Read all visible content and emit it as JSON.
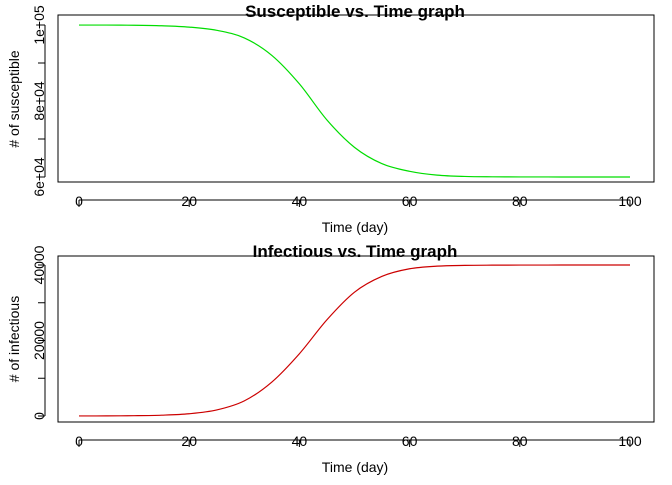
{
  "chart_data": [
    {
      "type": "line",
      "title": "Susceptible vs. Time graph",
      "xlabel": "Time (day)",
      "ylabel": "# of susceptible",
      "xlim": [
        0,
        100
      ],
      "ylim": [
        60000,
        100000
      ],
      "xticks": [
        0,
        20,
        40,
        60,
        80,
        100
      ],
      "xtick_labels": [
        "0",
        "20",
        "40",
        "60",
        "80",
        "100"
      ],
      "yticks": [
        60000,
        70000,
        80000,
        90000,
        100000
      ],
      "ytick_labels": [
        "6e+04",
        "",
        "8e+04",
        "",
        "1e+05"
      ],
      "grid": false,
      "series": [
        {
          "color": "#00dd00",
          "x": [
            0,
            5,
            10,
            15,
            20,
            25,
            30,
            35,
            40,
            45,
            50,
            55,
            60,
            65,
            70,
            75,
            80,
            85,
            90,
            95,
            100
          ],
          "values": [
            99990,
            99980,
            99940,
            99800,
            99450,
            98600,
            96600,
            92000,
            84500,
            75000,
            67800,
            63500,
            61500,
            60500,
            60150,
            60050,
            60020,
            60010,
            60000,
            60000,
            60000
          ]
        }
      ]
    },
    {
      "type": "line",
      "title": "Infectious vs. Time graph",
      "xlabel": "Time (day)",
      "ylabel": "# of infectious",
      "xlim": [
        0,
        100
      ],
      "ylim": [
        0,
        40000
      ],
      "xticks": [
        0,
        20,
        40,
        60,
        80,
        100
      ],
      "xtick_labels": [
        "0",
        "20",
        "40",
        "60",
        "80",
        "100"
      ],
      "yticks": [
        0,
        10000,
        20000,
        30000,
        40000
      ],
      "ytick_labels": [
        "0",
        "",
        "20000",
        "",
        "40000"
      ],
      "grid": false,
      "series": [
        {
          "color": "#cc0000",
          "x": [
            0,
            5,
            10,
            15,
            20,
            25,
            30,
            35,
            40,
            45,
            50,
            55,
            60,
            65,
            70,
            75,
            80,
            85,
            90,
            95,
            100
          ],
          "values": [
            10,
            30,
            80,
            220,
            600,
            1600,
            4000,
            9000,
            16500,
            25500,
            32800,
            37000,
            39000,
            39700,
            39900,
            39960,
            39980,
            39990,
            40000,
            40000,
            40000
          ]
        }
      ]
    }
  ]
}
